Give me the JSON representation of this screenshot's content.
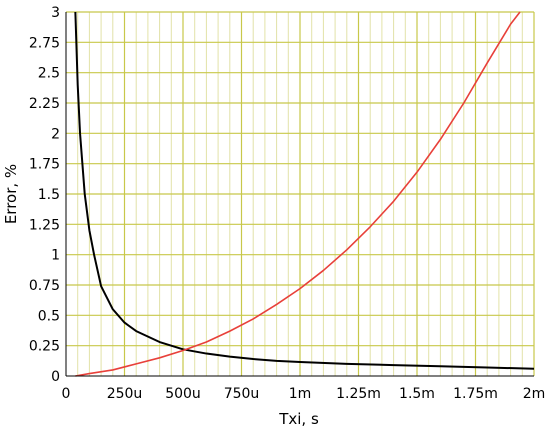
{
  "chart_data": {
    "type": "line",
    "xlabel": "Txi, s",
    "ylabel": "Error, %",
    "xlim": [
      0,
      0.002
    ],
    "ylim": [
      0,
      3
    ],
    "x_ticks": [
      0,
      0.00025,
      0.0005,
      0.00075,
      0.001,
      0.00125,
      0.0015,
      0.00175,
      0.002
    ],
    "x_tick_labels": [
      "0",
      "250u",
      "500u",
      "750u",
      "1m",
      "1.25m",
      "1.5m",
      "1.75m",
      "2m"
    ],
    "y_ticks": [
      0,
      0.25,
      0.5,
      0.75,
      1,
      1.25,
      1.5,
      1.75,
      2,
      2.25,
      2.5,
      2.75,
      3
    ],
    "y_tick_labels": [
      "0",
      "0.25",
      "0.5",
      "0.75",
      "1",
      "1.25",
      "1.5",
      "1.75",
      "2",
      "2.25",
      "2.5",
      "2.75",
      "3"
    ],
    "x_minor_step": 5e-05,
    "grid": true,
    "colors": {
      "major_grid": "#c8c84a",
      "minor_grid": "#e2e2a8",
      "axis": "#000000"
    },
    "series": [
      {
        "color": "#000000",
        "x": [
          4e-05,
          5e-05,
          6e-05,
          8e-05,
          0.0001,
          0.00012,
          0.00015,
          0.0002,
          0.00025,
          0.0003,
          0.0004,
          0.0005,
          0.0006,
          0.0007,
          0.0008,
          0.0009,
          0.001,
          0.0012,
          0.0014,
          0.0016,
          0.0018,
          0.002
        ],
        "y": [
          3.0,
          2.4,
          2.0,
          1.5,
          1.2,
          1.0,
          0.74,
          0.55,
          0.44,
          0.37,
          0.28,
          0.22,
          0.185,
          0.16,
          0.14,
          0.125,
          0.115,
          0.1,
          0.09,
          0.08,
          0.07,
          0.06
        ]
      },
      {
        "color": "#e8403a",
        "x": [
          4e-05,
          0.0001,
          0.0002,
          0.0003,
          0.0004,
          0.0005,
          0.0006,
          0.0007,
          0.0008,
          0.0009,
          0.001,
          0.0011,
          0.0012,
          0.0013,
          0.0014,
          0.0015,
          0.0016,
          0.0017,
          0.0018,
          0.0019,
          0.00194
        ],
        "y": [
          0.0,
          0.02,
          0.05,
          0.1,
          0.15,
          0.21,
          0.28,
          0.37,
          0.47,
          0.59,
          0.72,
          0.87,
          1.04,
          1.23,
          1.44,
          1.68,
          1.95,
          2.25,
          2.58,
          2.9,
          3.0
        ]
      }
    ]
  }
}
